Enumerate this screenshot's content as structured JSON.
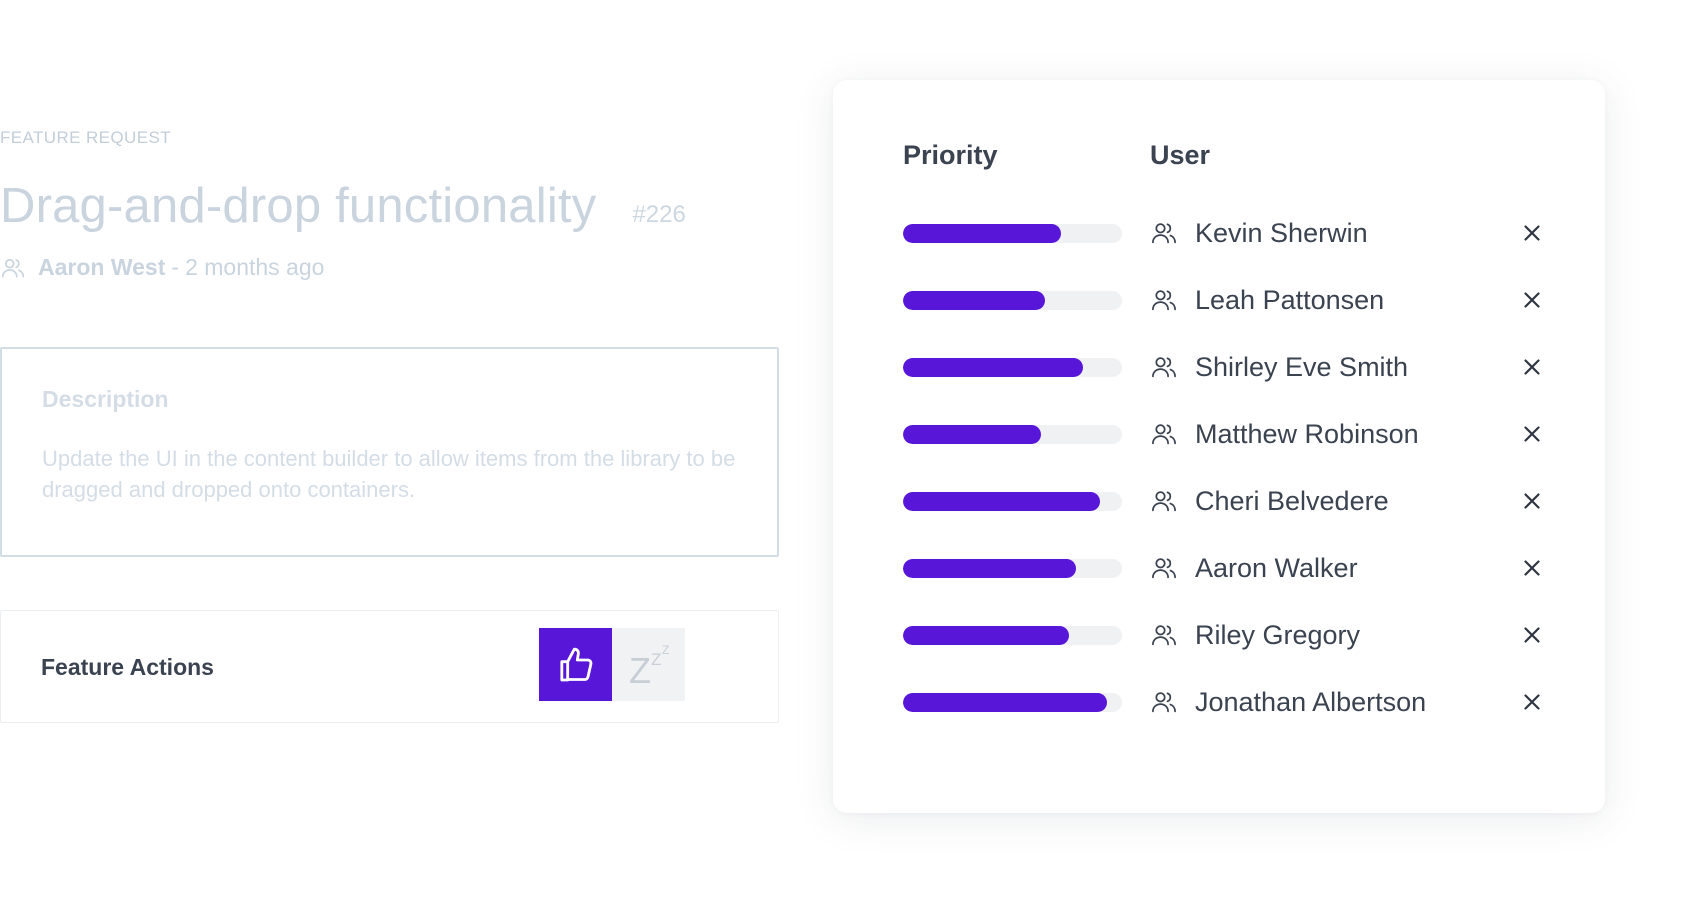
{
  "feature": {
    "kicker": "FEATURE REQUEST",
    "title": "Drag-and-drop functionality",
    "ticket": "#226",
    "author": "Aaron West",
    "separator": "-",
    "time_ago": "2 months ago",
    "description_label": "Description",
    "description_text": "Update the UI in the content builder to allow items from the library to be dragged and dropped onto containers.",
    "actions_label": "Feature Actions"
  },
  "priority_table": {
    "priority_header": "Priority",
    "user_header": "User",
    "accent_color": "#5816d9",
    "rows": [
      {
        "user": "Kevin Sherwin",
        "priority": 0.72
      },
      {
        "user": "Leah Pattonsen",
        "priority": 0.65
      },
      {
        "user": "Shirley Eve Smith",
        "priority": 0.82
      },
      {
        "user": "Matthew Robinson",
        "priority": 0.63
      },
      {
        "user": "Cheri Belvedere",
        "priority": 0.9
      },
      {
        "user": "Aaron Walker",
        "priority": 0.79
      },
      {
        "user": "Riley Gregory",
        "priority": 0.76
      },
      {
        "user": "Jonathan Albertson",
        "priority": 0.93
      }
    ]
  },
  "icons": {
    "user": "user-group-icon",
    "remove": "close-icon",
    "like": "thumbs-up-icon",
    "snooze": "snooze-icon"
  }
}
